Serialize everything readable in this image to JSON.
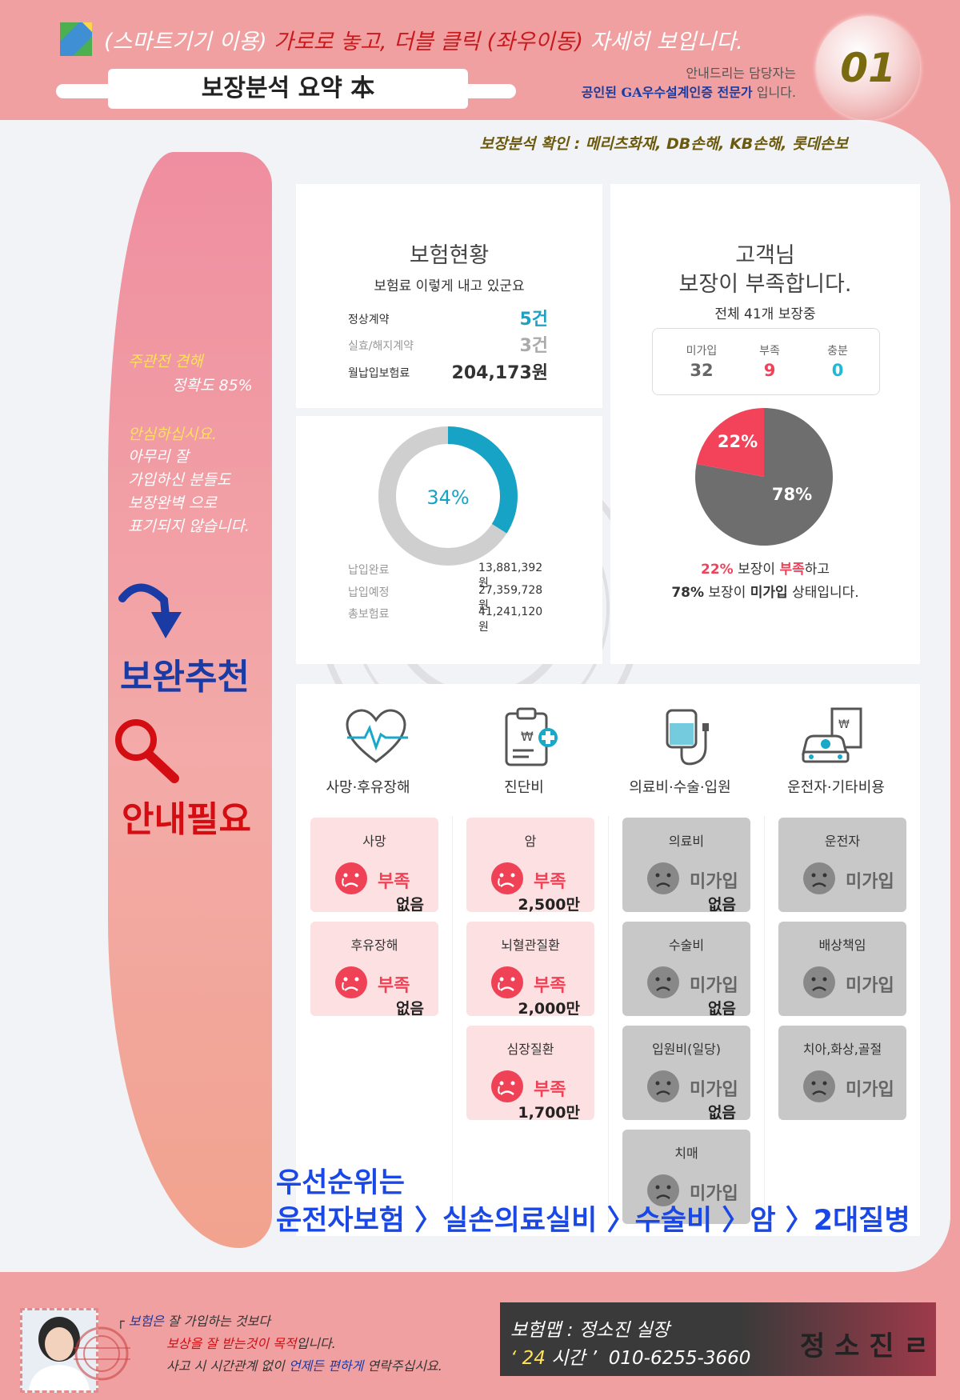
{
  "header": {
    "title_prefix": "(스마트기기 이용)",
    "title_highlight": "가로로 놓고, 더블 클릭 (좌우이동)",
    "title_suffix": "자세히 보입니다.",
    "doc_title": "보장분석 요약 本",
    "guide_line1": "안내드리는 담당자는",
    "guide_line2_bold": "공인된 GA우수설계인증 전문가",
    "guide_line2_rest": "입니다.",
    "badge": "01",
    "confirm": "보장분석 확인 : 메리츠화재, DB손해, KB손해, 롯데손보"
  },
  "sidebar": {
    "line1": "주관전 견해",
    "line2": "정확도 85%",
    "line3": "안심하십시요.",
    "line4": "아무리 잘",
    "line5": "가입하신 분들도",
    "line6": "보장완벽 으로",
    "line7": "표기되지 않습니다.",
    "recommend": "보완추천",
    "need_guide": "안내필요"
  },
  "insurance_status": {
    "title": "보험현황",
    "subtitle": "보험료 이렇게 내고 있군요",
    "rows": [
      {
        "label": "정상계약",
        "value": "5건"
      },
      {
        "label": "실효/해지계약",
        "value": "3건"
      },
      {
        "label": "월납입보험료",
        "value": "204,173원"
      }
    ]
  },
  "payment": {
    "percent_label": "34%",
    "percent": 34,
    "rows": [
      {
        "label": "납입완료",
        "value": "13,881,392원"
      },
      {
        "label": "납입예정",
        "value": "27,359,728원"
      },
      {
        "label": "총보험료",
        "value": "41,241,120원"
      }
    ],
    "colors": {
      "fill": "#17a3c6",
      "track": "#cfcfcf"
    }
  },
  "coverage": {
    "title1": "고객님",
    "title2": "보장이 부족합니다.",
    "subtitle": "전체 41개 보장중",
    "counts": [
      {
        "label": "미가입",
        "value": "32"
      },
      {
        "label": "부족",
        "value": "9"
      },
      {
        "label": "충분",
        "value": "0"
      }
    ],
    "pie_insufficient_label": "22%",
    "pie_not_enrolled_label": "78%",
    "summary1_pct": "22%",
    "summary1_mid": "보장이",
    "summary1_word": "부족",
    "summary1_end": "하고",
    "summary2_pct": "78%",
    "summary2_mid": "보장이",
    "summary2_word": "미가입",
    "summary2_end": "상태입니다.",
    "colors": {
      "insufficient": "#f2435a",
      "not_enrolled": "#6e6e6e"
    }
  },
  "chart_data": {
    "type": "pie",
    "categories": [
      "부족",
      "미가입"
    ],
    "values": [
      22,
      78
    ]
  },
  "categories": [
    {
      "label": "사망·후유장해",
      "icon": "heart-pulse-icon"
    },
    {
      "label": "진단비",
      "icon": "medical-report-icon"
    },
    {
      "label": "의료비·수술·입원",
      "icon": "iv-drip-icon"
    },
    {
      "label": "운전자·기타비용",
      "icon": "car-document-icon"
    }
  ],
  "tiles": {
    "death": {
      "title": "사망",
      "status": "부족",
      "amount": "없음"
    },
    "disability": {
      "title": "후유장해",
      "status": "부족",
      "amount": "없음"
    },
    "cancer": {
      "title": "암",
      "status": "부족",
      "amount": "2,500만"
    },
    "cerebro": {
      "title": "뇌혈관질환",
      "status": "부족",
      "amount": "2,000만"
    },
    "heart": {
      "title": "심장질환",
      "status": "부족",
      "amount": "1,700만"
    },
    "medical": {
      "title": "의료비",
      "status": "미가입",
      "amount": "없음"
    },
    "surgery": {
      "title": "수술비",
      "status": "미가입",
      "amount": "없음"
    },
    "hospital": {
      "title": "입원비(일당)",
      "status": "미가입",
      "amount": "없음"
    },
    "dementia": {
      "title": "치매",
      "status": "미가입"
    },
    "driver": {
      "title": "운전자",
      "status": "미가입"
    },
    "liability": {
      "title": "배상책임",
      "status": "미가입"
    },
    "dental": {
      "title": "치아,화상,골절",
      "status": "미가입"
    }
  },
  "priority": {
    "line1": "우선순위는",
    "line2": "운전자보험 〉실손의료실비 〉수술비 〉암 〉2대질병"
  },
  "footer": {
    "msg1_prefix": "┌ ",
    "msg1_blue": "보험은",
    "msg1_rest": " 잘 가입하는 것보다",
    "msg2_red": "보상을 잘 받는것이 목적",
    "msg2_rest": "입니다.",
    "msg3_a": "사고 시 시간관계 없이 ",
    "msg3_blue": "언제든 편하게",
    "msg3_b": " 연락주십시요.",
    "sig_line1": "보험맵 : 정소진 실장",
    "sig_24": "‘ 24 ",
    "sig_time": "시간 ’",
    "sig_phone": "010-6255-3660",
    "signature": "정 소 진 ㄹ"
  }
}
